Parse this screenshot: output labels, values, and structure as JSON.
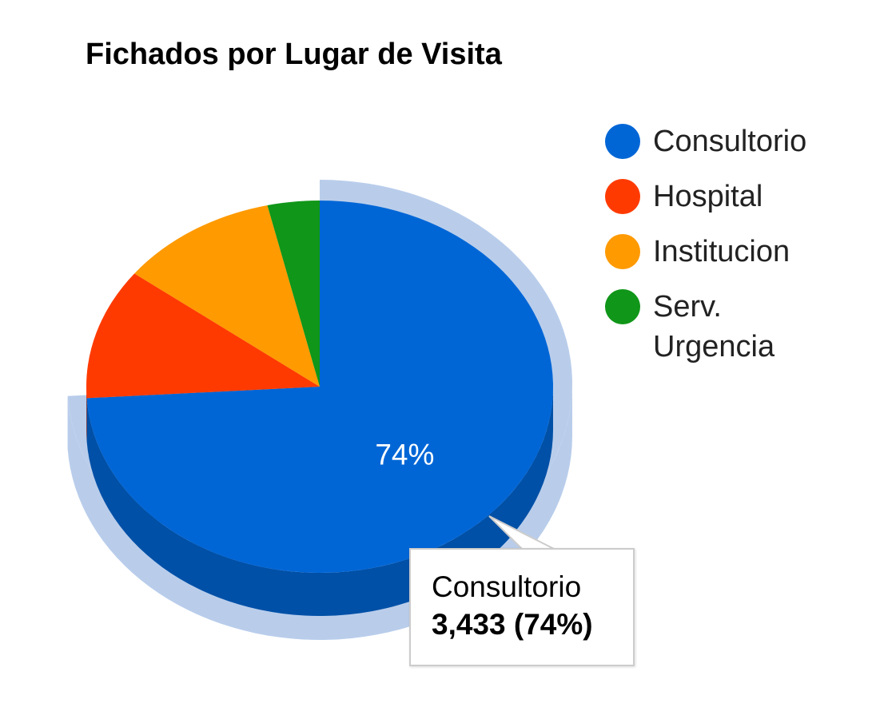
{
  "chart_data": {
    "type": "pie",
    "title": "Fichados por Lugar de Visita",
    "categories": [
      "Consultorio",
      "Hospital",
      "Institucion",
      "Serv. Urgencia"
    ],
    "values": [
      3433,
      528,
      510,
      167
    ],
    "colors": [
      "#0066d6",
      "#ff3a00",
      "#ff9a00",
      "#109618"
    ],
    "slice_labels": [
      "74%",
      "",
      "",
      ""
    ],
    "legend_position": "right",
    "three_d": true,
    "highlighted_slice": "Consultorio",
    "tooltip": {
      "label": "Consultorio",
      "value_text": "3,433 (74%)"
    }
  }
}
